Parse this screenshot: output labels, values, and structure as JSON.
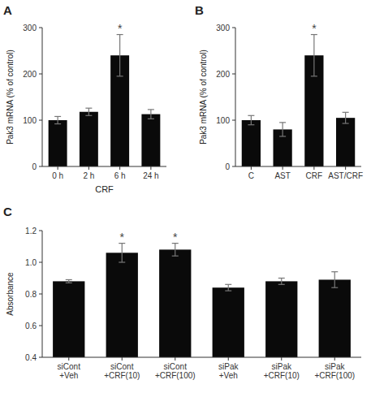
{
  "chart_data": [
    {
      "type": "bar",
      "title": "A",
      "categories": [
        "0 h",
        "2 h",
        "6 h",
        "24 h"
      ],
      "values": [
        100,
        118,
        240,
        113
      ],
      "errors": [
        8,
        8,
        45,
        10
      ],
      "annotations": [
        {
          "text": "*",
          "category": "6 h",
          "color": "#444444"
        }
      ],
      "xlabel": "CRF",
      "ylabel": "Pak3 mRNA (% of control)",
      "ylim": [
        0,
        300
      ],
      "yticks": [
        0,
        100,
        200,
        300
      ],
      "color": "#0a0a0a",
      "grid": false
    },
    {
      "type": "bar",
      "title": "B",
      "categories": [
        "C",
        "AST",
        "CRF",
        "AST/CRF"
      ],
      "values": [
        100,
        80,
        240,
        105
      ],
      "errors": [
        10,
        15,
        45,
        12
      ],
      "annotations": [
        {
          "text": "*",
          "category": "CRF",
          "color": "#444444"
        }
      ],
      "ylabel": "Pak3 mRNA (% of control)",
      "ylim": [
        0,
        300
      ],
      "yticks": [
        0,
        100,
        200,
        300
      ],
      "color": "#0a0a0a",
      "grid": false
    },
    {
      "type": "bar",
      "title": "C",
      "categories": [
        "siCont\n+Veh",
        "siCont\n+CRF(10)",
        "siCont\n+CRF(100)",
        "siPak\n+Veh",
        "siPak\n+CRF(10)",
        "siPak\n+CRF(100)"
      ],
      "values": [
        0.88,
        1.06,
        1.08,
        0.84,
        0.88,
        0.89
      ],
      "errors": [
        0.01,
        0.06,
        0.04,
        0.02,
        0.02,
        0.05
      ],
      "annotations": [
        {
          "text": "*",
          "category": "siCont\n+CRF(10)",
          "color": "#444444"
        },
        {
          "text": "*",
          "category": "siCont\n+CRF(100)",
          "color": "#444444"
        }
      ],
      "ylabel": "Absorbance",
      "ylim": [
        0.4,
        1.2
      ],
      "yticks": [
        {
          "value": 0.4,
          "label": "0.4"
        },
        {
          "value": 0.6,
          "label": "0.6"
        },
        {
          "value": 0.8,
          "label": "0.8"
        },
        {
          "value": 1.0,
          "label": "1.0"
        },
        {
          "value": 1.2,
          "label": "1.2"
        }
      ],
      "color": "#0a0a0a",
      "grid": false
    }
  ]
}
